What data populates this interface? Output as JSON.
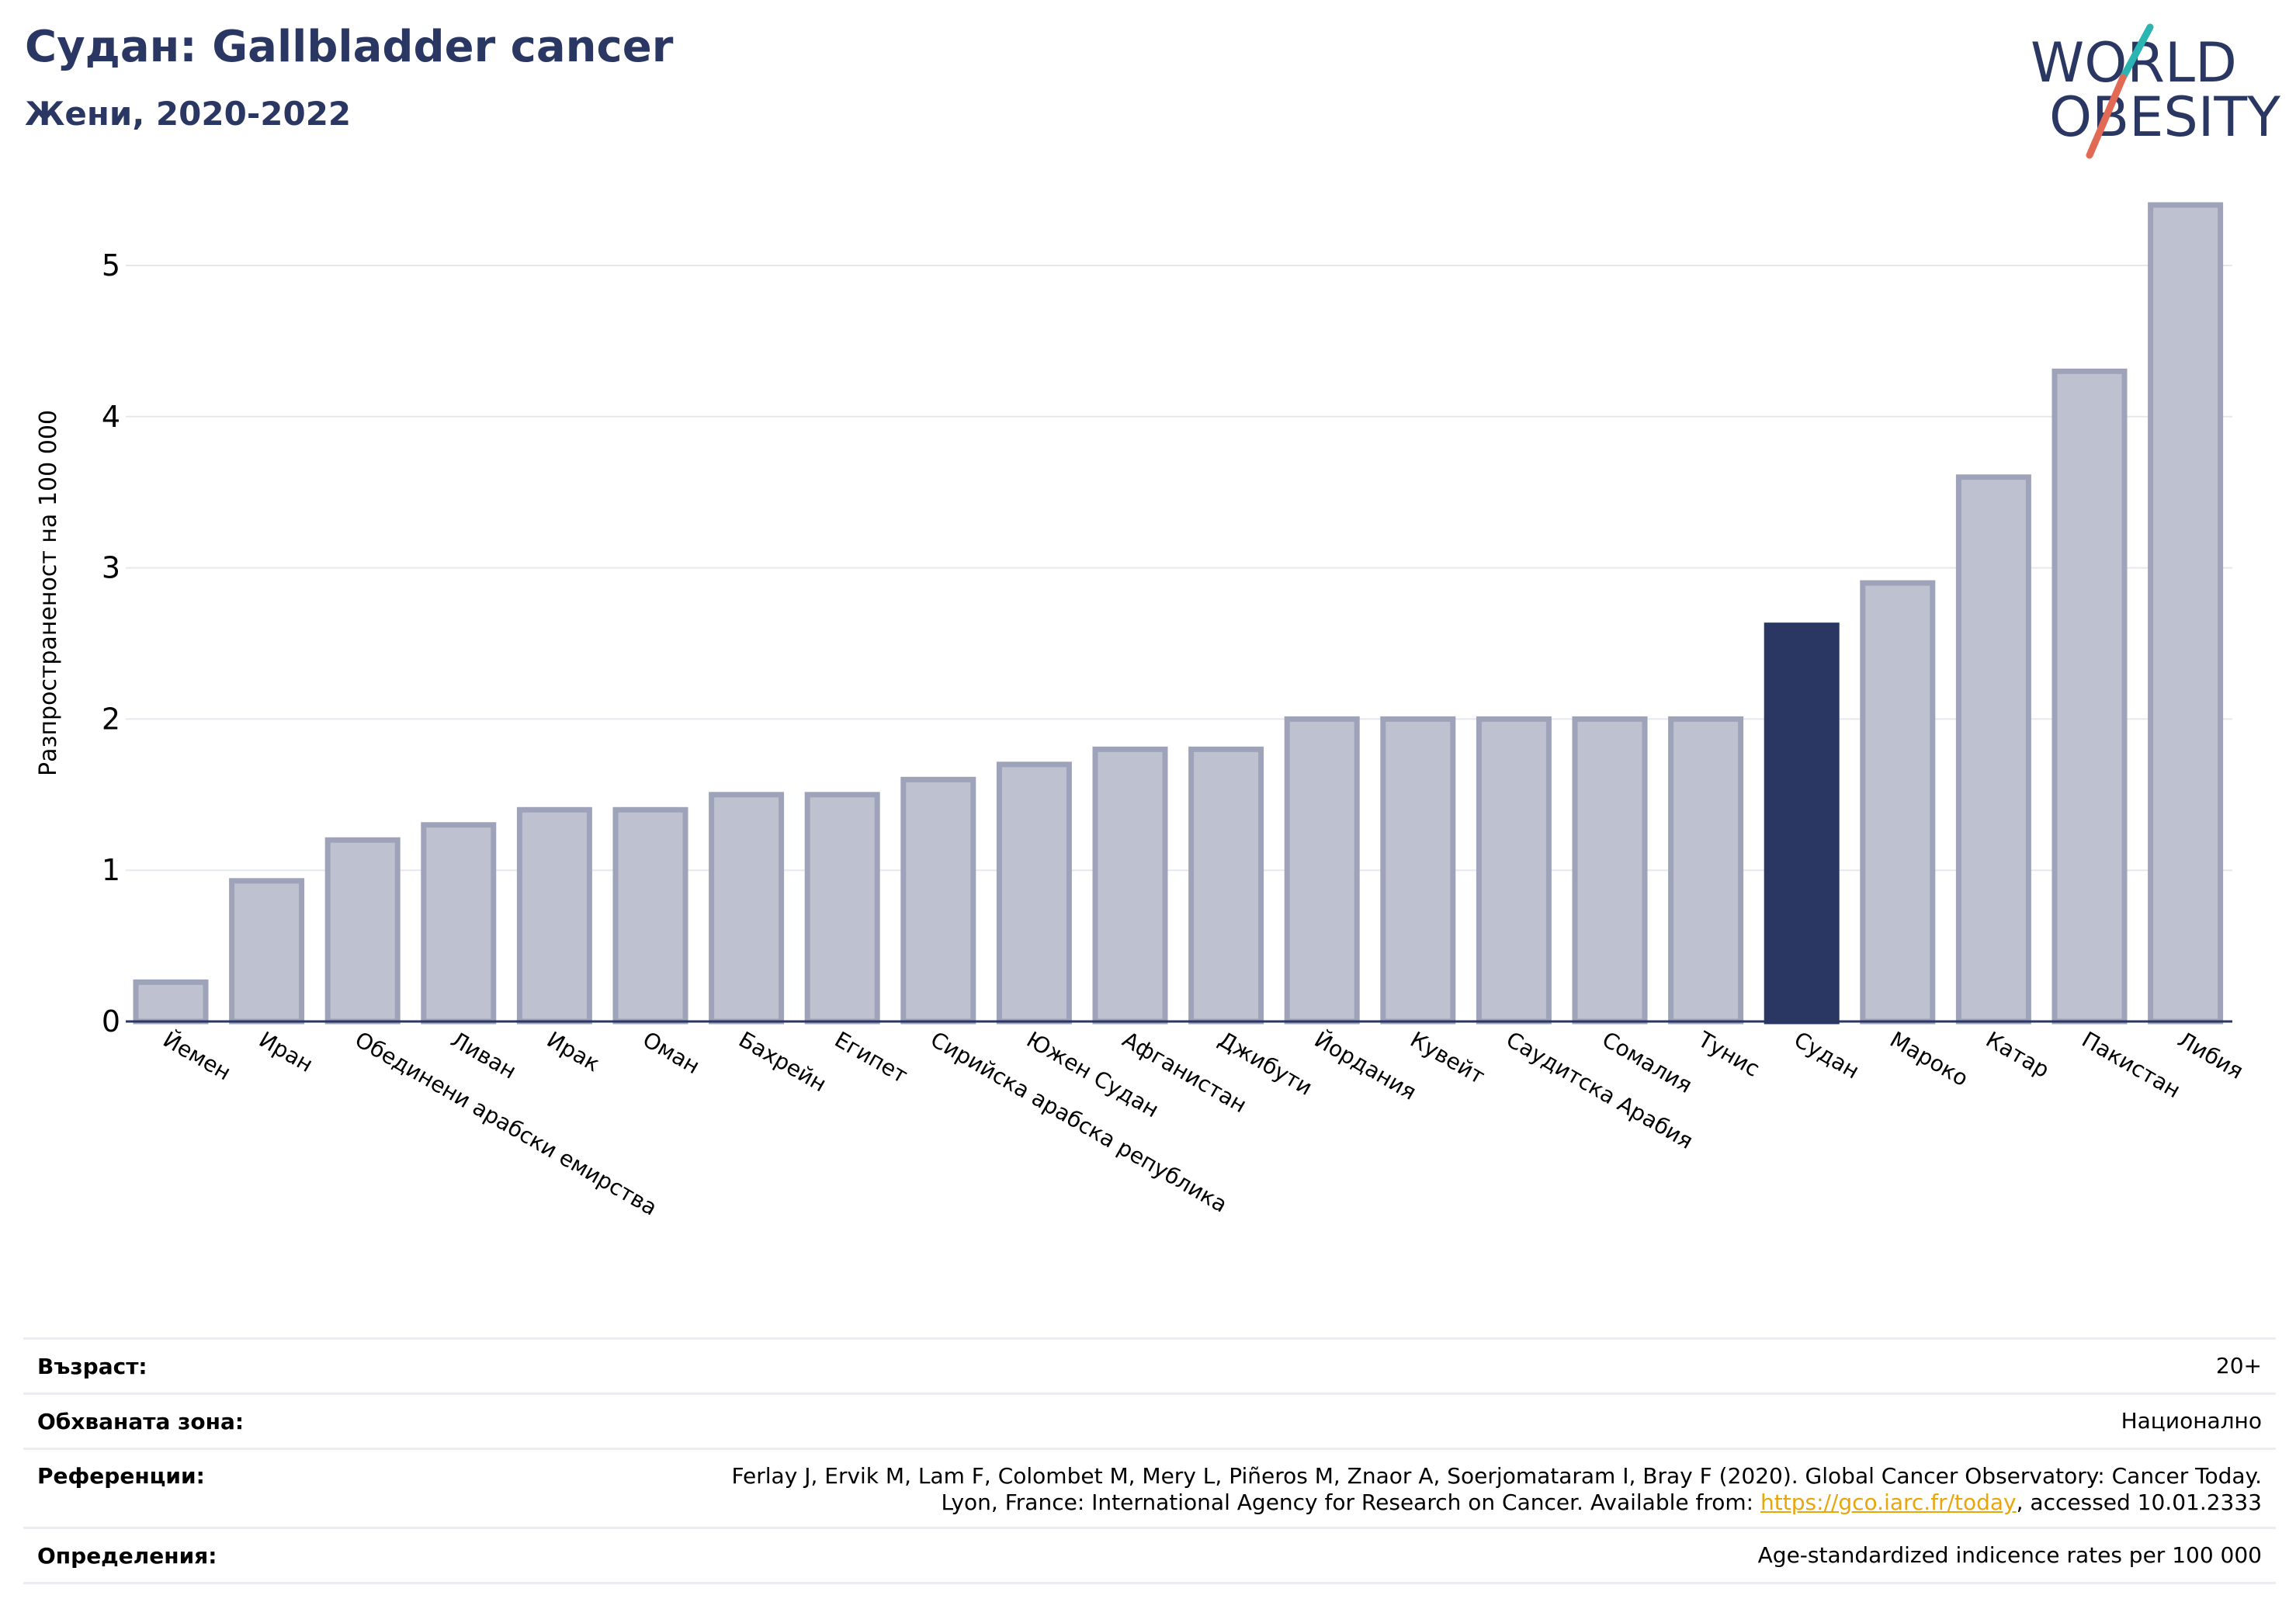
{
  "header": {
    "title": "Судан: Gallbladder cancer",
    "subtitle": "Жени, 2020-2022"
  },
  "logo": {
    "line1": "WORLD",
    "line2": "OBESITY",
    "colors": {
      "text": "#2b3763",
      "slash_teal": "#2ab5b2",
      "slash_red": "#e26a55"
    }
  },
  "colors": {
    "bar": "#bec1cf",
    "bar_border": "#9ea3b9",
    "highlight": "#2b3763",
    "grid": "#e6e8ee",
    "axis": "#2b3763"
  },
  "chart_data": {
    "type": "bar",
    "ylabel": "Разпространеност  на 100 000",
    "ylim": [
      0,
      5.5
    ],
    "yticks": [
      0,
      1,
      2,
      3,
      4,
      5
    ],
    "grid": true,
    "highlight": "Судан",
    "categories": [
      "Йемен",
      "Иран",
      "Обединени арабски емирства",
      "Ливан",
      "Ирак",
      "Оман",
      "Бахрейн",
      "Египет",
      "Сирийска арабска република",
      "Южен Судан",
      "Афганистан",
      "Джибути",
      "Йордания",
      "Кувейт",
      "Саудитска Арабия",
      "Сомалия",
      "Тунис",
      "Судан",
      "Мароко",
      "Катар",
      "Пакистан",
      "Либия"
    ],
    "values": [
      0.26,
      0.93,
      1.2,
      1.3,
      1.4,
      1.4,
      1.5,
      1.5,
      1.6,
      1.7,
      1.8,
      1.8,
      2.0,
      2.0,
      2.0,
      2.0,
      2.0,
      2.62,
      2.9,
      3.6,
      4.3,
      5.4
    ]
  },
  "info": {
    "age_label": "Възраст:",
    "age_value": "20+",
    "coverage_label": "Обхваната зона:",
    "coverage_value": "Национално",
    "references_label": "Референции:",
    "references_line1": "Ferlay J, Ervik M, Lam F, Colombet M, Mery L, Piñeros M, Znaor A, Soerjomataram I, Bray F (2020). Global Cancer Observatory: Cancer Today.",
    "references_line2_prefix": "Lyon, France: International Agency for Research on Cancer. Available from: ",
    "references_link": "https://gco.iarc.fr/today",
    "references_line2_suffix": ", accessed 10.01.2333",
    "definitions_label": "Определения:",
    "definitions_value": "Age-standardized indicence rates per 100 000"
  }
}
